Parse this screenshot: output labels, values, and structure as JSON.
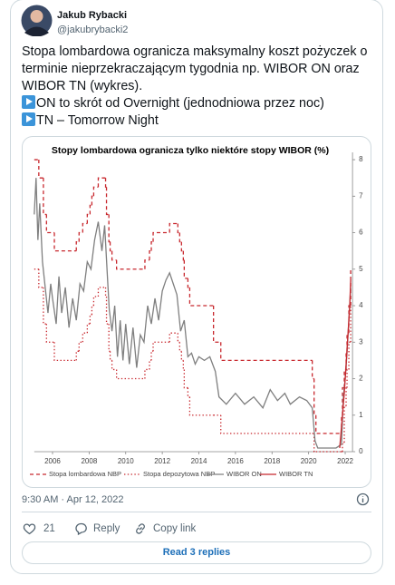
{
  "tweet": {
    "author": {
      "name": "Jakub Rybacki",
      "handle": "@jakubrybacki2"
    },
    "text": [
      "Stopa lombardowa ogranicza maksymalny koszt pożyczek o terminie nieprzekraczającym tygodnia np. WIBOR ON oraz WIBOR TN (wykres).",
      "ON to skrót od Overnight (jednodniowa przez noc)",
      "TN – Tomorrow Night"
    ],
    "timestamp": "9:30 AM · Apr 12, 2022",
    "likes": 21,
    "actions": {
      "reply": "Reply",
      "copy_link": "Copy link"
    },
    "read_replies": "Read 3 replies"
  },
  "chart_data": {
    "type": "line",
    "title": "Stopy lombardowa ogranicza tylko niektóre stopy WIBOR (%)",
    "xlim": [
      2005,
      2022.4
    ],
    "xticks": [
      2006,
      2008,
      2010,
      2012,
      2014,
      2016,
      2018,
      2020,
      2022
    ],
    "ylim": [
      0,
      8.2
    ],
    "yticks": [
      0,
      1,
      2,
      3,
      4,
      5,
      6,
      7,
      8
    ],
    "y_axis_side": "right",
    "grid": false,
    "series": [
      {
        "name": "Stopa lombardowa NBP",
        "color": "#c8282e",
        "dash": "dashed",
        "step": true,
        "x": [
          2005.0,
          2005.25,
          2005.5,
          2005.67,
          2006.1,
          2007.3,
          2007.45,
          2007.65,
          2007.9,
          2008.05,
          2008.15,
          2008.25,
          2008.5,
          2008.9,
          2008.95,
          2009.08,
          2009.15,
          2009.25,
          2009.5,
          2011.05,
          2011.3,
          2011.4,
          2011.5,
          2012.4,
          2012.85,
          2012.95,
          2013.05,
          2013.15,
          2013.2,
          2013.4,
          2013.5,
          2014.8,
          2015.2,
          2020.2,
          2020.3,
          2020.4,
          2021.8,
          2021.85,
          2021.95,
          2022.05,
          2022.1,
          2022.2,
          2022.3
        ],
        "values": [
          8.0,
          7.5,
          6.5,
          6.0,
          5.5,
          5.75,
          6.0,
          6.25,
          6.5,
          6.75,
          7.0,
          7.25,
          7.5,
          7.25,
          6.5,
          5.75,
          5.5,
          5.25,
          5.0,
          5.25,
          5.5,
          5.75,
          6.0,
          6.25,
          6.0,
          5.75,
          5.5,
          5.25,
          4.75,
          4.5,
          4.0,
          3.0,
          2.5,
          2.0,
          1.0,
          0.5,
          1.0,
          1.75,
          2.25,
          2.75,
          3.25,
          4.0,
          5.0
        ]
      },
      {
        "name": "Stopa depozytowa NBP",
        "color": "#c8282e",
        "dash": "dotted",
        "step": true,
        "x": [
          2005.0,
          2005.25,
          2005.5,
          2005.67,
          2006.1,
          2007.3,
          2007.45,
          2007.65,
          2007.9,
          2008.05,
          2008.15,
          2008.25,
          2008.5,
          2008.9,
          2008.95,
          2009.08,
          2009.15,
          2009.25,
          2009.5,
          2011.05,
          2011.3,
          2011.4,
          2011.5,
          2012.4,
          2012.85,
          2012.95,
          2013.05,
          2013.15,
          2013.2,
          2013.4,
          2013.5,
          2014.8,
          2015.2,
          2020.2,
          2020.3,
          2020.4,
          2021.8,
          2021.85,
          2021.95,
          2022.05,
          2022.1,
          2022.2,
          2022.3
        ],
        "values": [
          5.0,
          4.5,
          3.5,
          3.0,
          2.5,
          2.75,
          3.0,
          3.25,
          3.5,
          3.75,
          4.0,
          4.25,
          4.5,
          4.25,
          3.5,
          2.75,
          2.5,
          2.25,
          2.0,
          2.25,
          2.5,
          2.75,
          3.0,
          3.25,
          3.0,
          2.75,
          2.5,
          2.25,
          1.75,
          1.5,
          1.0,
          1.0,
          0.5,
          0.5,
          0.0,
          0.0,
          0.0,
          0.25,
          1.25,
          1.75,
          2.25,
          3.0,
          4.0
        ]
      },
      {
        "name": "WIBOR ON",
        "color": "#7f7f7f",
        "dash": "solid",
        "step": false,
        "x": [
          2005.0,
          2005.1,
          2005.2,
          2005.3,
          2005.45,
          2005.6,
          2005.75,
          2005.9,
          2006.0,
          2006.2,
          2006.35,
          2006.5,
          2006.7,
          2006.9,
          2007.1,
          2007.3,
          2007.5,
          2007.7,
          2007.9,
          2008.1,
          2008.3,
          2008.5,
          2008.7,
          2008.85,
          2009.0,
          2009.1,
          2009.25,
          2009.4,
          2009.55,
          2009.7,
          2009.85,
          2010.0,
          2010.2,
          2010.4,
          2010.6,
          2010.8,
          2011.0,
          2011.2,
          2011.4,
          2011.6,
          2011.8,
          2012.0,
          2012.2,
          2012.4,
          2012.6,
          2012.8,
          2013.0,
          2013.2,
          2013.4,
          2013.6,
          2013.8,
          2014.0,
          2014.3,
          2014.6,
          2014.9,
          2015.1,
          2015.5,
          2016.0,
          2016.5,
          2017.0,
          2017.5,
          2017.9,
          2018.3,
          2018.7,
          2019.0,
          2019.5,
          2019.9,
          2020.2,
          2020.35,
          2020.5,
          2021.0,
          2021.5,
          2021.8,
          2021.9,
          2022.0,
          2022.1,
          2022.2,
          2022.3
        ],
        "values": [
          6.5,
          7.5,
          5.8,
          6.8,
          5.2,
          4.5,
          3.8,
          4.6,
          4.2,
          3.5,
          4.8,
          3.8,
          4.5,
          3.4,
          4.2,
          3.6,
          4.6,
          4.4,
          5.2,
          5.0,
          5.8,
          6.3,
          5.5,
          6.2,
          4.8,
          3.9,
          3.3,
          4.0,
          2.6,
          3.6,
          2.5,
          3.5,
          2.4,
          3.4,
          2.3,
          3.2,
          3.0,
          4.0,
          3.5,
          4.2,
          3.6,
          4.4,
          4.7,
          4.9,
          4.6,
          4.3,
          3.3,
          3.6,
          2.6,
          2.7,
          2.4,
          2.6,
          2.5,
          2.6,
          2.2,
          1.5,
          1.3,
          1.6,
          1.3,
          1.5,
          1.2,
          1.7,
          1.4,
          1.6,
          1.3,
          1.5,
          1.4,
          1.2,
          0.3,
          0.1,
          0.1,
          0.1,
          0.2,
          1.5,
          2.0,
          2.7,
          3.6,
          4.5
        ]
      },
      {
        "name": "WIBOR TN",
        "color": "#c8282e",
        "dash": "solid",
        "step": false,
        "x": [
          2021.7,
          2021.85,
          2021.95,
          2022.05,
          2022.15,
          2022.25,
          2022.3
        ],
        "values": [
          0.1,
          1.0,
          1.6,
          2.4,
          3.2,
          4.0,
          4.7
        ]
      }
    ]
  }
}
